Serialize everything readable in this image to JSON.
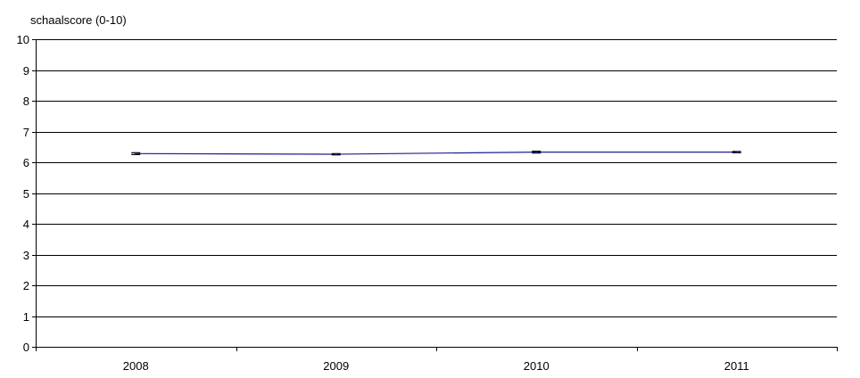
{
  "chart_data": {
    "type": "line",
    "title": "",
    "xlabel": "",
    "ylabel": "schaalscore (0-10)",
    "categories": [
      "2008",
      "2009",
      "2010",
      "2011"
    ],
    "series": [
      {
        "values": [
          6.28,
          6.26,
          6.33,
          6.33
        ],
        "error_low": [
          6.25,
          6.24,
          6.3,
          6.31
        ],
        "error_high": [
          6.31,
          6.28,
          6.36,
          6.35
        ],
        "color": "#1f1f8f"
      }
    ],
    "ylim": [
      0,
      10
    ],
    "yticks": [
      0,
      1,
      2,
      3,
      4,
      5,
      6,
      7,
      8,
      9,
      10
    ],
    "grid": true,
    "legend": "none"
  }
}
